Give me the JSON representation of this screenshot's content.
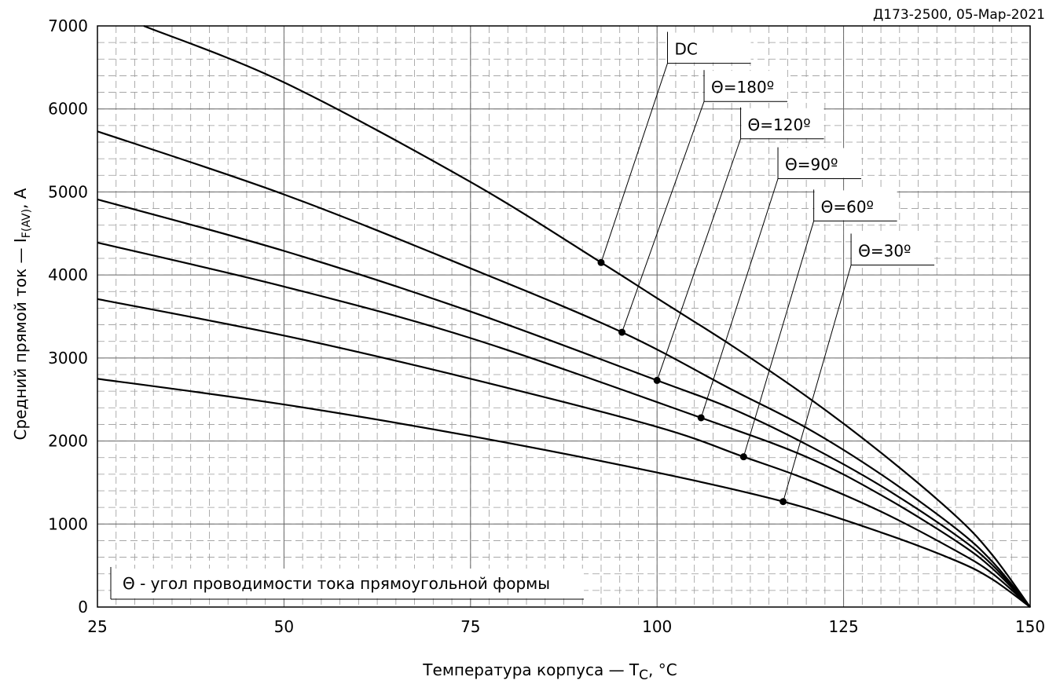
{
  "chart_data": {
    "type": "line",
    "title": "",
    "watermark": "Д173-2500, 05-Мар-2021",
    "xlabel": {
      "main": "Температура корпуса — T",
      "sub": "C",
      "tail": ", °C"
    },
    "ylabel": {
      "main": "Средний прямой ток — I",
      "sub": "F(AV)",
      "tail": ", A"
    },
    "xlim": [
      25,
      150
    ],
    "ylim": [
      0,
      7000
    ],
    "x_ticks": [
      "25",
      "50",
      "75",
      "100",
      "125",
      "150"
    ],
    "y_ticks": [
      "0",
      "1000",
      "2000",
      "3000",
      "4000",
      "5000",
      "6000",
      "7000"
    ],
    "x_tick_values": [
      25,
      50,
      75,
      100,
      125,
      150
    ],
    "y_tick_values": [
      0,
      1000,
      2000,
      3000,
      4000,
      5000,
      6000,
      7000
    ],
    "grid": true,
    "note": "Θ - угол проводимости тока прямоугольной формы",
    "series": [
      {
        "name": "DC",
        "x": [
          31.2,
          50,
          75,
          92.5,
          100,
          110,
          120,
          130,
          140,
          145,
          150
        ],
        "y": [
          7000,
          6320,
          5120,
          4150,
          3720,
          3150,
          2540,
          1860,
          1100,
          620,
          0
        ],
        "marker": {
          "x": 92.5,
          "y": 4150
        },
        "label_anchor": {
          "x": 101.4,
          "y": 6550
        }
      },
      {
        "name": "Θ=180º",
        "x": [
          25,
          50,
          75,
          95.3,
          110,
          120,
          130,
          140,
          145,
          150
        ],
        "y": [
          5730,
          4970,
          4080,
          3310,
          2620,
          2160,
          1600,
          950,
          540,
          0
        ],
        "marker": {
          "x": 95.3,
          "y": 3310
        },
        "label_anchor": {
          "x": 106.3,
          "y": 6090
        }
      },
      {
        "name": "Θ=120º",
        "x": [
          25,
          50,
          75,
          100,
          110,
          120,
          130,
          140,
          145,
          150
        ],
        "y": [
          4910,
          4290,
          3560,
          2730,
          2390,
          1960,
          1460,
          870,
          500,
          0
        ],
        "marker": {
          "x": 100,
          "y": 2730
        },
        "label_anchor": {
          "x": 111.2,
          "y": 5640
        }
      },
      {
        "name": "Θ=90º",
        "x": [
          25,
          50,
          75,
          105.9,
          120,
          130,
          140,
          145,
          150
        ],
        "y": [
          4390,
          3860,
          3240,
          2280,
          1810,
          1350,
          800,
          460,
          0
        ],
        "marker": {
          "x": 105.9,
          "y": 2280
        },
        "label_anchor": {
          "x": 116.2,
          "y": 5160
        }
      },
      {
        "name": "Θ=60º",
        "x": [
          25,
          50,
          75,
          100,
          111.6,
          120,
          130,
          140,
          145,
          150
        ],
        "y": [
          3710,
          3270,
          2750,
          2170,
          1810,
          1540,
          1150,
          680,
          400,
          0
        ],
        "marker": {
          "x": 111.6,
          "y": 1810
        },
        "label_anchor": {
          "x": 121.0,
          "y": 4650
        }
      },
      {
        "name": "Θ=30º",
        "x": [
          25,
          50,
          75,
          100,
          116.9,
          130,
          140,
          145,
          150
        ],
        "y": [
          2750,
          2440,
          2060,
          1620,
          1270,
          900,
          560,
          330,
          0
        ],
        "marker": {
          "x": 116.9,
          "y": 1270
        },
        "label_anchor": {
          "x": 126.0,
          "y": 4120
        }
      }
    ]
  }
}
